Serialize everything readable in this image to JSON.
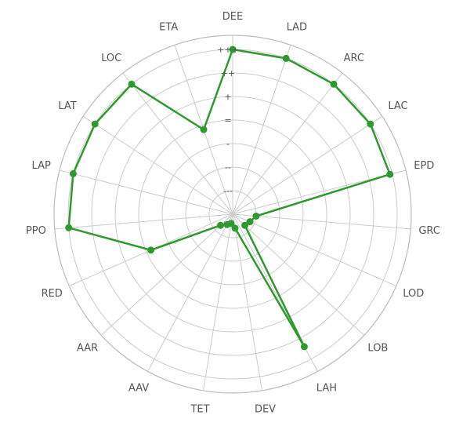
{
  "chart_data": {
    "type": "radar",
    "title": "",
    "categories": [
      "DEE",
      "LAD",
      "ARC",
      "LAC",
      "EPD",
      "GRC",
      "LOD",
      "LOB",
      "LAH",
      "DEV",
      "TET",
      "AAV",
      "AAR",
      "RED",
      "PPO",
      "LAP",
      "LAT",
      "LOC",
      "ETA"
    ],
    "ring_labels": [
      "---",
      "--",
      "-",
      "=",
      "+",
      "++",
      "+++"
    ],
    "ring_count": 7,
    "rmax": 7,
    "series": [
      {
        "name": "",
        "color": "#2e9a2e",
        "values": [
          7,
          7,
          7,
          7,
          6.9,
          1.0,
          0.8,
          0.7,
          6.4,
          0.6,
          0.4,
          0.5,
          0.7,
          3.8,
          7,
          7,
          7,
          7,
          3.8
        ]
      }
    ],
    "grid": true,
    "legend": "none"
  }
}
